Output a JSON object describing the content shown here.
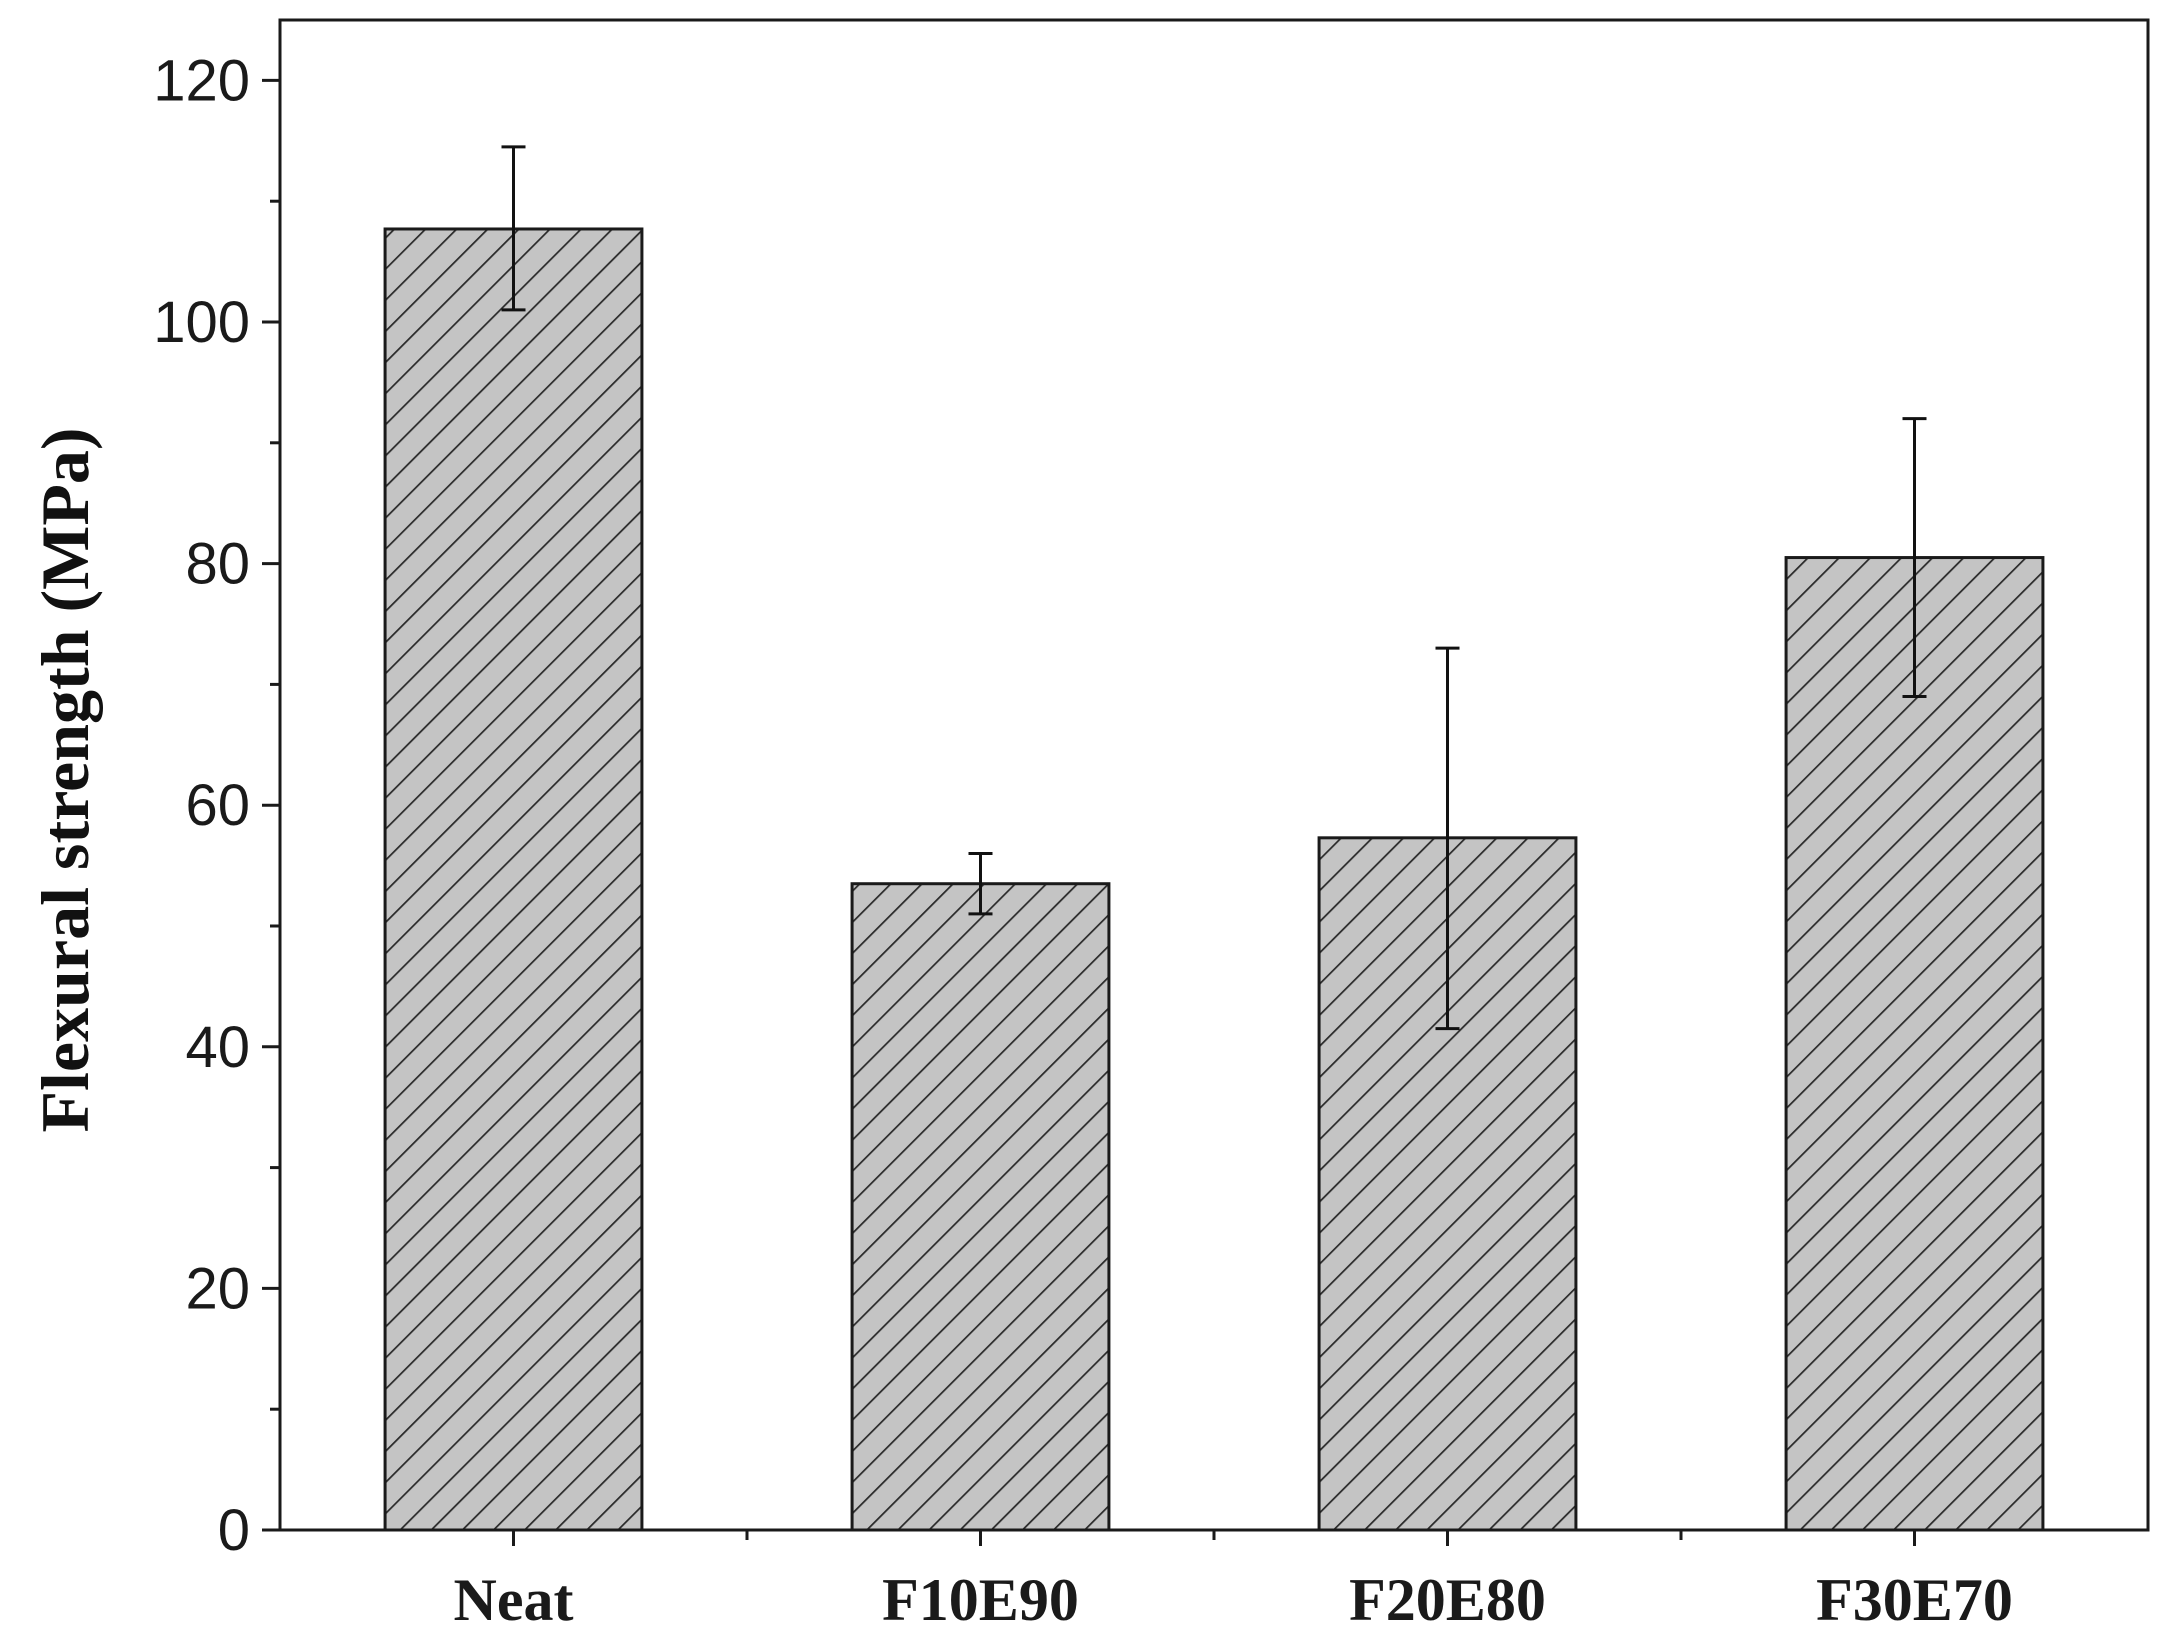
{
  "chart_data": {
    "type": "bar",
    "categories": [
      "Neat",
      "F10E90",
      "F20E80",
      "F30E70"
    ],
    "values": [
      107.7,
      53.5,
      57.3,
      80.5
    ],
    "error_upper": [
      114.5,
      56.0,
      73.0,
      92.0
    ],
    "error_lower": [
      101.0,
      51.0,
      41.5,
      69.0
    ],
    "xlabel": "",
    "ylabel": "Flexural strength (MPa)",
    "ylim": [
      0,
      125
    ],
    "yticks": [
      0,
      20,
      40,
      60,
      80,
      100,
      120
    ],
    "grid": false,
    "bar_fill": "#c4c4c4",
    "bar_hatch": "diagonal",
    "bar_edge_color": "#1a1a1a",
    "axis_color": "#1a1a1a"
  }
}
